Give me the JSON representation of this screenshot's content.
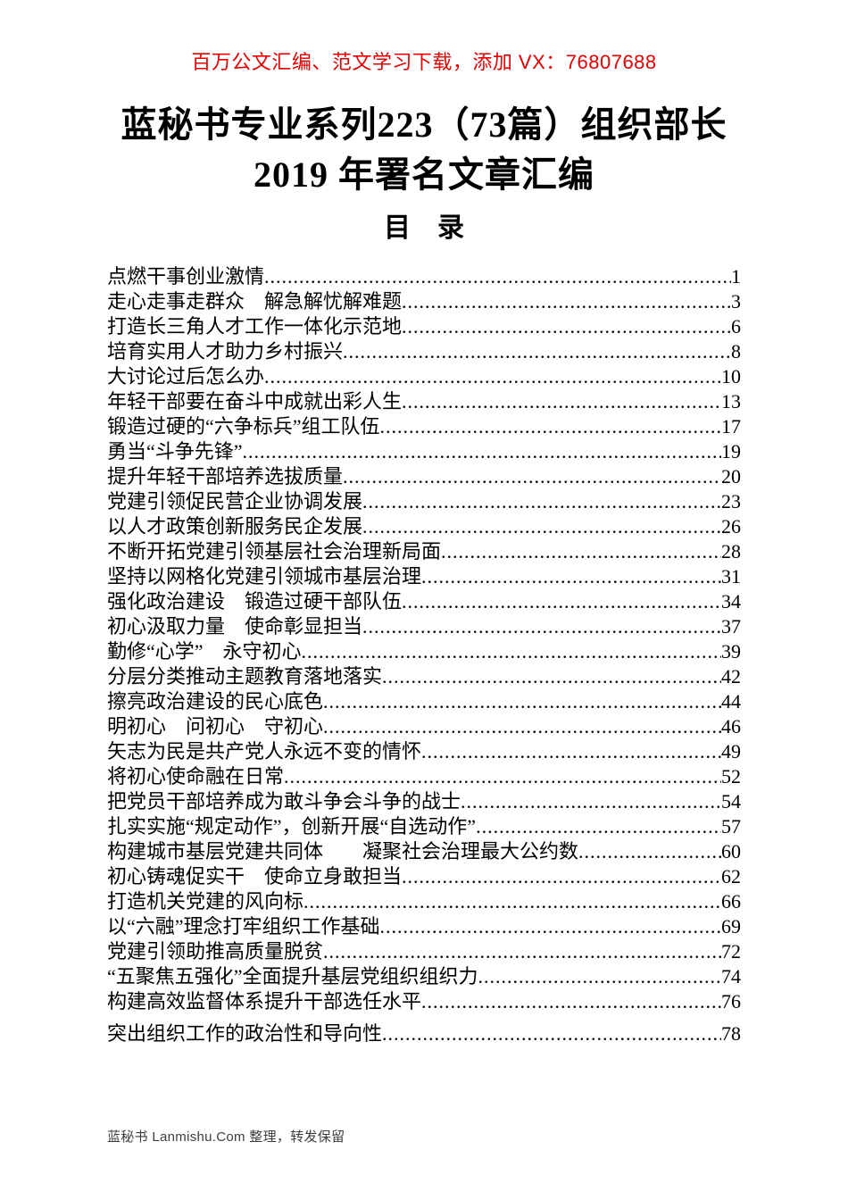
{
  "promo": {
    "text": "百万公文汇编、范文学习下载，添加 VX：76807688",
    "color": "#e60000"
  },
  "title": {
    "line1": "蓝秘书专业系列223（73篇）组织部长",
    "line2": "2019 年署名文章汇编"
  },
  "toc_heading": "目　录",
  "toc": {
    "entries": [
      {
        "title": "点燃干事创业激情",
        "page": "1"
      },
      {
        "title": "走心走事走群众　解急解忧解难题",
        "page": "3"
      },
      {
        "title": "打造长三角人才工作一体化示范地",
        "page": "6"
      },
      {
        "title": "培育实用人才助力乡村振兴",
        "page": "8"
      },
      {
        "title": "大讨论过后怎么办",
        "page": "10"
      },
      {
        "title": "年轻干部要在奋斗中成就出彩人生",
        "page": "13"
      },
      {
        "title": "锻造过硬的“六争标兵”组工队伍",
        "page": "17"
      },
      {
        "title": "勇当“斗争先锋”",
        "page": "19"
      },
      {
        "title": "提升年轻干部培养选拔质量",
        "page": "20"
      },
      {
        "title": "党建引领促民营企业协调发展",
        "page": "23"
      },
      {
        "title": "以人才政策创新服务民企发展",
        "page": "26"
      },
      {
        "title": "不断开拓党建引领基层社会治理新局面",
        "page": "28"
      },
      {
        "title": "坚持以网格化党建引领城市基层治理",
        "page": "31"
      },
      {
        "title": "强化政治建设　锻造过硬干部队伍",
        "page": "34"
      },
      {
        "title": "初心汲取力量　使命彰显担当",
        "page": "37"
      },
      {
        "title": "勤修“心学”　永守初心",
        "page": "39"
      },
      {
        "title": "分层分类推动主题教育落地落实",
        "page": "42"
      },
      {
        "title": "擦亮政治建设的民心底色",
        "page": "44"
      },
      {
        "title": "明初心　问初心　守初心",
        "page": "46"
      },
      {
        "title": "矢志为民是共产党人永远不变的情怀",
        "page": "49"
      },
      {
        "title": "将初心使命融在日常",
        "page": "52"
      },
      {
        "title": "把党员干部培养成为敢斗争会斗争的战士",
        "page": "54"
      },
      {
        "title": "扎实实施“规定动作”，创新开展“自选动作”",
        "page": "57"
      },
      {
        "title": "构建城市基层党建共同体　　凝聚社会治理最大公约数",
        "page": "60"
      },
      {
        "title": "初心铸魂促实干　使命立身敢担当",
        "page": "62"
      },
      {
        "title": "打造机关党建的风向标",
        "page": "66"
      },
      {
        "title": "以“六融”理念打牢组织工作基础",
        "page": "69"
      },
      {
        "title": "党建引领助推高质量脱贫",
        "page": "72"
      },
      {
        "title": "“五聚焦五强化”全面提升基层党组织组织力",
        "page": "74"
      },
      {
        "title": "构建高效监督体系提升干部选任水平",
        "page": "76"
      },
      {
        "title": "突出组织工作的政治性和导向性",
        "page": "78"
      }
    ]
  },
  "footer": {
    "text": "蓝秘书 Lanmishu.Com 整理，转发保留"
  }
}
